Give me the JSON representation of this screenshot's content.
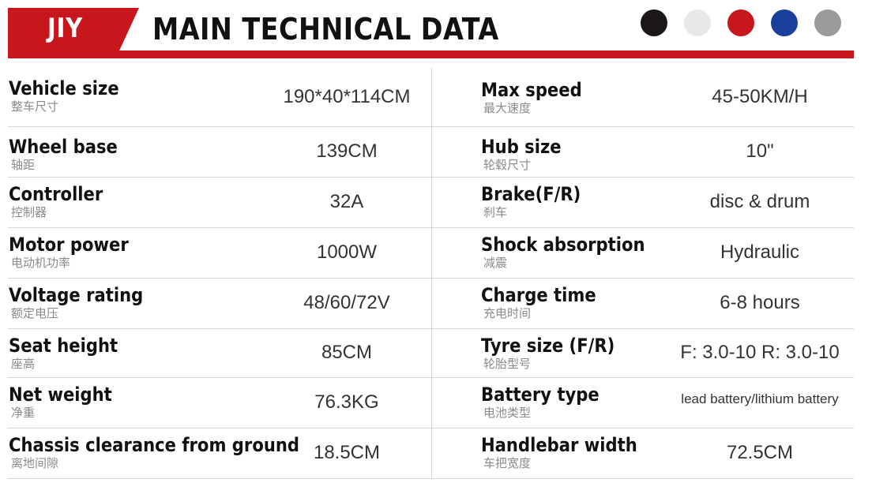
{
  "header": {
    "brand": "JIY",
    "title": "MAIN TECHNICAL DATA",
    "colors": [
      "#1c1716",
      "#e8e8e8",
      "#c8161d",
      "#1a3f9a",
      "#9a9a9a"
    ]
  },
  "specs_left": [
    {
      "en": "Vehicle size",
      "zh": "整车尺寸",
      "value": "190*40*114CM"
    },
    {
      "en": "Wheel base",
      "zh": "轴距",
      "value": "139CM"
    },
    {
      "en": "Controller",
      "zh": "控制器",
      "value": "32A"
    },
    {
      "en": "Motor power",
      "zh": "电动机功率",
      "value": "1000W"
    },
    {
      "en": "Voltage rating",
      "zh": "额定电压",
      "value": "48/60/72V"
    },
    {
      "en": "Seat height",
      "zh": "座高",
      "value": "85CM"
    },
    {
      "en": "Net weight",
      "zh": "净重",
      "value": "76.3KG"
    },
    {
      "en": "Chassis clearance from ground",
      "zh": "离地间隙",
      "value": "18.5CM"
    }
  ],
  "specs_right": [
    {
      "en": "Max speed",
      "zh": "最大速度",
      "value": "45-50KM/H"
    },
    {
      "en": "Hub size",
      "zh": "轮毂尺寸",
      "value": "10\""
    },
    {
      "en": "Brake(F/R)",
      "zh": "刹车",
      "value": "disc & drum"
    },
    {
      "en": "Shock absorption",
      "zh": "减震",
      "value": "Hydraulic"
    },
    {
      "en": "Charge time",
      "zh": "充电时间",
      "value": "6-8 hours"
    },
    {
      "en": "Tyre size (F/R)",
      "zh": "轮胎型号",
      "value": "F: 3.0-10 R: 3.0-10"
    },
    {
      "en": "Battery type",
      "zh": "电池类型",
      "value": "lead battery/lithium battery"
    },
    {
      "en": "Handlebar width",
      "zh": "车把宽度",
      "value": "72.5CM"
    }
  ]
}
